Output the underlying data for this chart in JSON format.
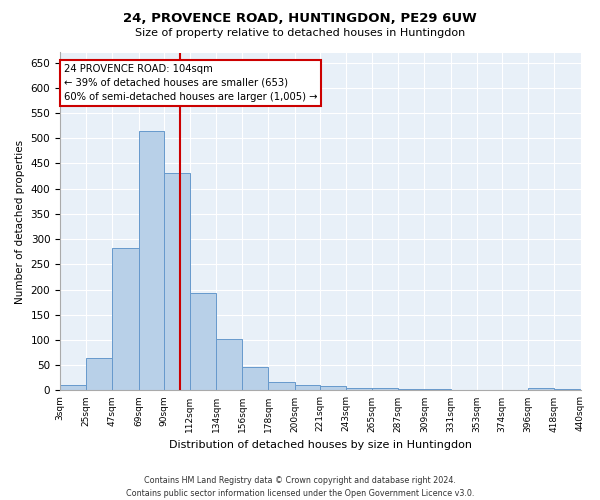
{
  "title": "24, PROVENCE ROAD, HUNTINGDON, PE29 6UW",
  "subtitle": "Size of property relative to detached houses in Huntingdon",
  "xlabel": "Distribution of detached houses by size in Huntingdon",
  "ylabel": "Number of detached properties",
  "bar_color": "#b8d0e8",
  "bar_edge_color": "#6699cc",
  "background_color": "#e8f0f8",
  "grid_color": "#ffffff",
  "annotation_box_color": "#cc0000",
  "vline_color": "#cc0000",
  "vline_x": 104,
  "annotation_text_line1": "24 PROVENCE ROAD: 104sqm",
  "annotation_text_line2": "← 39% of detached houses are smaller (653)",
  "annotation_text_line3": "60% of semi-detached houses are larger (1,005) →",
  "bin_edges": [
    3,
    25,
    47,
    69,
    90,
    112,
    134,
    156,
    178,
    200,
    221,
    243,
    265,
    287,
    309,
    331,
    353,
    374,
    396,
    418,
    440
  ],
  "bin_labels": [
    "3sqm",
    "25sqm",
    "47sqm",
    "69sqm",
    "90sqm",
    "112sqm",
    "134sqm",
    "156sqm",
    "178sqm",
    "200sqm",
    "221sqm",
    "243sqm",
    "265sqm",
    "287sqm",
    "309sqm",
    "331sqm",
    "353sqm",
    "374sqm",
    "396sqm",
    "418sqm",
    "440sqm"
  ],
  "bar_heights": [
    10,
    65,
    283,
    515,
    432,
    193,
    102,
    46,
    16,
    11,
    8,
    5,
    5,
    3,
    3,
    1,
    1,
    0,
    4,
    3
  ],
  "ylim": [
    0,
    670
  ],
  "yticks": [
    0,
    50,
    100,
    150,
    200,
    250,
    300,
    350,
    400,
    450,
    500,
    550,
    600,
    650
  ],
  "footer_line1": "Contains HM Land Registry data © Crown copyright and database right 2024.",
  "footer_line2": "Contains public sector information licensed under the Open Government Licence v3.0."
}
